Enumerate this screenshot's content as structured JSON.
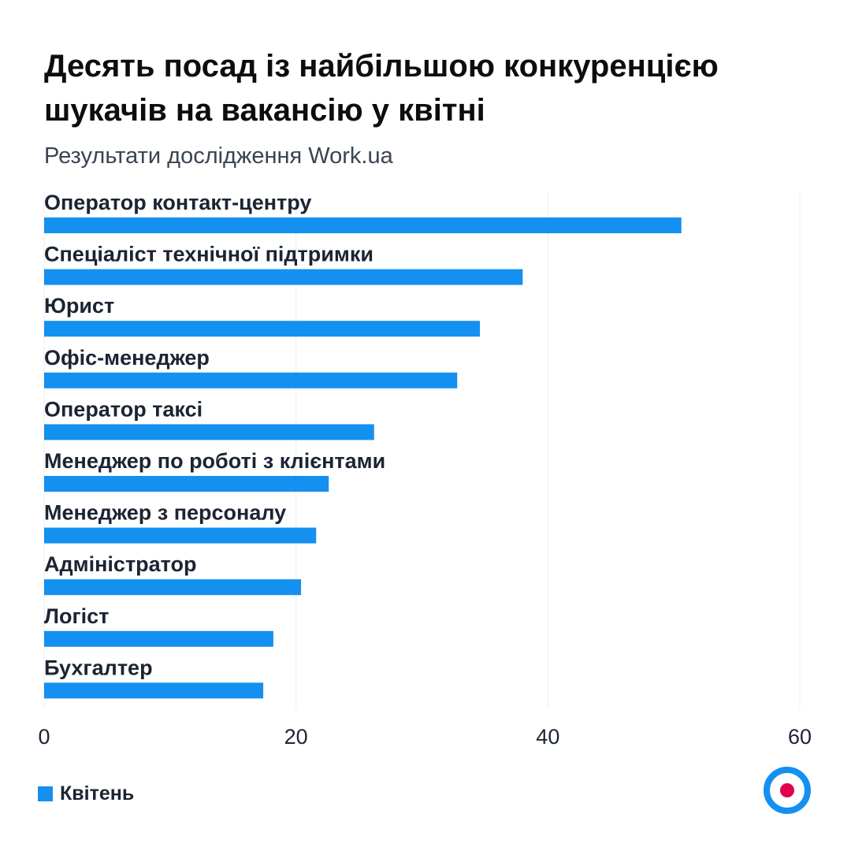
{
  "header": {
    "title": "Десять посад із найбільшою конкуренцією шукачів на вакансію у квітні",
    "subtitle": "Результати дослідження Work.ua"
  },
  "legend": {
    "label": "Квітень"
  },
  "colors": {
    "bar": "#1390f0",
    "grid": "#eeeeee",
    "logo_ring": "#1390f0",
    "logo_dot": "#e0004d"
  },
  "logo": {
    "icon": "target-logo-icon"
  },
  "chart_data": {
    "type": "bar",
    "orientation": "horizontal",
    "categories": [
      "Оператор контакт-центру",
      "Спеціаліст технічної підтримки",
      "Юрист",
      "Офіс-менеджер",
      "Оператор таксі",
      "Менеджер по роботі з клієнтами",
      "Менеджер з персоналу",
      "Адміністратор",
      "Логіст",
      "Бухгалтер"
    ],
    "series": [
      {
        "name": "Квітень",
        "values": [
          50.6,
          38,
          34.6,
          32.8,
          26.2,
          22.6,
          21.6,
          20.4,
          18.2,
          17.4
        ]
      }
    ],
    "xlim": [
      0,
      60
    ],
    "xticks": [
      0,
      20,
      40,
      60
    ],
    "grid": true,
    "legend_position": "bottom-left"
  }
}
